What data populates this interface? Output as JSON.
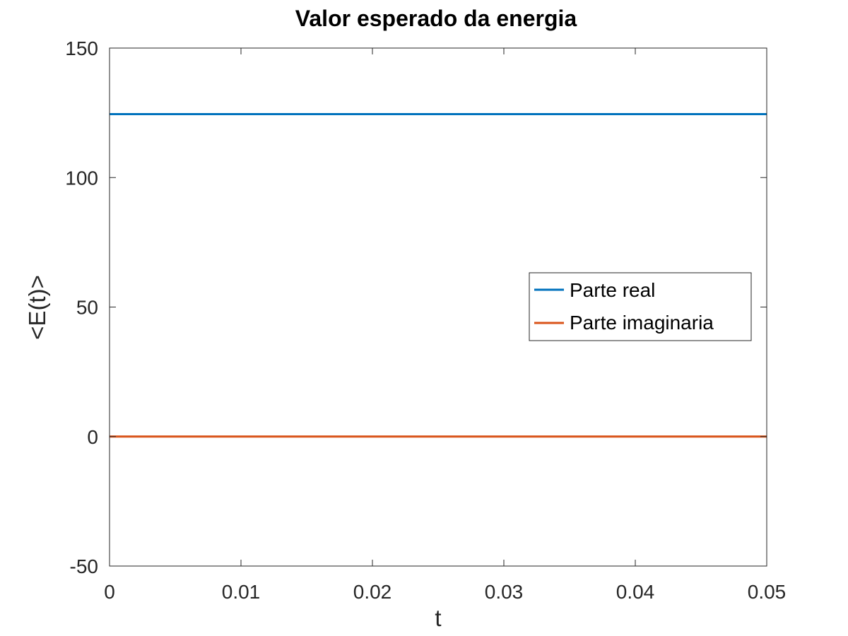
{
  "chart_data": {
    "type": "line",
    "title": "Valor esperado da energia",
    "xlabel": "t",
    "ylabel": "<E(t)>",
    "xlim": [
      0,
      0.05
    ],
    "ylim": [
      -50,
      150
    ],
    "xticks": [
      0,
      0.01,
      0.02,
      0.03,
      0.04,
      0.05
    ],
    "xtick_labels": [
      "0",
      "0.01",
      "0.02",
      "0.03",
      "0.04",
      "0.05"
    ],
    "yticks": [
      -50,
      0,
      50,
      100,
      150
    ],
    "ytick_labels": [
      "-50",
      "0",
      "50",
      "100",
      "150"
    ],
    "grid": false,
    "legend_position": "right",
    "series": [
      {
        "name": "Parte real",
        "color": "#0072BD",
        "x": [
          0,
          0.05
        ],
        "y": [
          124.5,
          124.5
        ]
      },
      {
        "name": "Parte imaginaria",
        "color": "#D95319",
        "x": [
          0,
          0.05
        ],
        "y": [
          0,
          0
        ]
      }
    ]
  }
}
